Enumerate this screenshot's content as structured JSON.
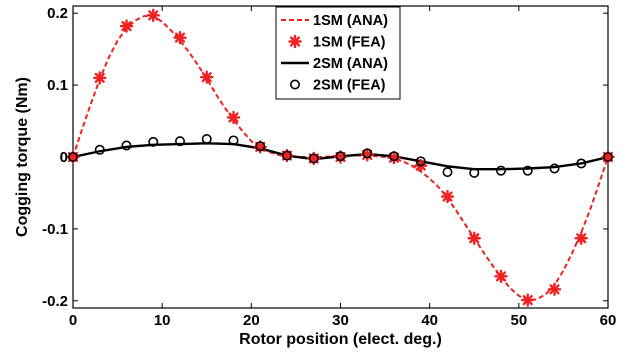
{
  "chart_data": {
    "type": "line",
    "title": "",
    "xlabel": "Rotor position (elect. deg.)",
    "ylabel": "Cogging torque (Nm)",
    "xlim": [
      0,
      60
    ],
    "ylim": [
      -0.21,
      0.21
    ],
    "xticks": [
      0,
      10,
      20,
      30,
      40,
      50,
      60
    ],
    "xtick_labels": [
      "0",
      "10",
      "20",
      "30",
      "40",
      "50",
      "60"
    ],
    "yticks": [
      0.2,
      0.1,
      0,
      -0.1,
      -0.2
    ],
    "ytick_labels": [
      "0.2",
      "0.1",
      "0",
      "-0.1",
      "-0.2"
    ],
    "grid": false,
    "legend_position": "top-center",
    "series": [
      {
        "name": "1SM (ANA)",
        "style": "dashed-line",
        "color": "#ee2222",
        "x": [
          0,
          1,
          2,
          3,
          4,
          5,
          6,
          7,
          8,
          9,
          10,
          11,
          12,
          13,
          14,
          15,
          16,
          17,
          18,
          19,
          20,
          21,
          22,
          23,
          24,
          25,
          26,
          27,
          28,
          29,
          30,
          31,
          32,
          33,
          34,
          35,
          36,
          37,
          38,
          39,
          40,
          41,
          42,
          43,
          44,
          45,
          46,
          47,
          48,
          49,
          50,
          51,
          52,
          53,
          54,
          55,
          56,
          57,
          58,
          59,
          60
        ],
        "y": [
          0,
          0.038,
          0.074,
          0.108,
          0.138,
          0.162,
          0.179,
          0.19,
          0.196,
          0.196,
          0.188,
          0.176,
          0.162,
          0.146,
          0.128,
          0.109,
          0.088,
          0.069,
          0.052,
          0.036,
          0.022,
          0.013,
          0.007,
          0.003,
          0.001,
          0,
          0,
          0,
          0,
          0.001,
          0.002,
          0.002,
          0.002,
          0.002,
          0.001,
          0,
          -0.002,
          -0.006,
          -0.012,
          -0.02,
          -0.03,
          -0.042,
          -0.057,
          -0.075,
          -0.094,
          -0.113,
          -0.132,
          -0.15,
          -0.167,
          -0.182,
          -0.193,
          -0.199,
          -0.198,
          -0.191,
          -0.178,
          -0.158,
          -0.133,
          -0.105,
          -0.073,
          -0.037,
          0
        ]
      },
      {
        "name": "1SM (FEA)",
        "style": "asterisk-markers",
        "color": "#ee2222",
        "x": [
          0,
          3,
          6,
          9,
          12,
          15,
          18,
          21,
          24,
          27,
          30,
          33,
          36,
          39,
          42,
          45,
          48,
          51,
          54,
          57,
          60
        ],
        "y": [
          0,
          0.11,
          0.182,
          0.197,
          0.166,
          0.111,
          0.055,
          0.014,
          0.002,
          -0.002,
          0,
          0.003,
          -0.001,
          -0.012,
          -0.055,
          -0.113,
          -0.166,
          -0.199,
          -0.184,
          -0.113,
          0
        ]
      },
      {
        "name": "2SM (ANA)",
        "style": "solid-line",
        "color": "#000000",
        "x": [
          0,
          3,
          6,
          9,
          12,
          15,
          18,
          21,
          24,
          27,
          30,
          33,
          36,
          39,
          42,
          45,
          48,
          51,
          54,
          57,
          60
        ],
        "y": [
          0,
          0.008,
          0.014,
          0.017,
          0.018,
          0.019,
          0.018,
          0.012,
          0.002,
          -0.003,
          0.001,
          0.004,
          0.001,
          -0.006,
          -0.013,
          -0.017,
          -0.017,
          -0.016,
          -0.014,
          -0.009,
          0
        ]
      },
      {
        "name": "2SM (FEA)",
        "style": "circle-markers",
        "color": "#000000",
        "x": [
          0,
          3,
          6,
          9,
          12,
          15,
          18,
          21,
          24,
          27,
          30,
          33,
          36,
          39,
          42,
          45,
          48,
          51,
          54,
          57,
          60
        ],
        "y": [
          0,
          0.01,
          0.016,
          0.021,
          0.022,
          0.025,
          0.023,
          0.015,
          0.002,
          -0.002,
          0.001,
          0.005,
          0.001,
          -0.006,
          -0.021,
          -0.022,
          -0.019,
          -0.019,
          -0.016,
          -0.009,
          0
        ]
      }
    ]
  }
}
